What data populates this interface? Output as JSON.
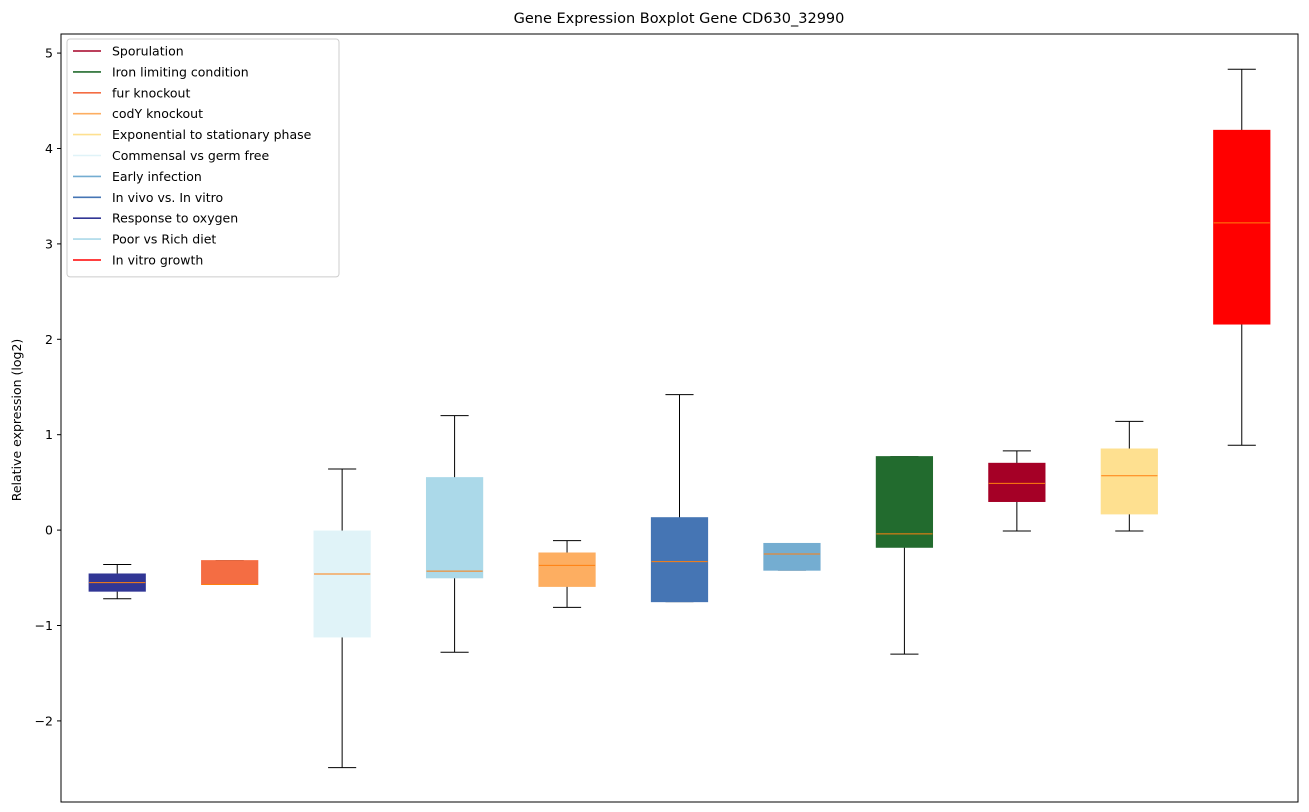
{
  "chart_data": {
    "type": "boxplot",
    "title": "Gene Expression Boxplot Gene CD630_32990",
    "xlabel": "",
    "ylabel": "Relative expression (log2)",
    "ylim": [
      -2.85,
      5.2
    ],
    "yticks": [
      -2,
      -1,
      0,
      1,
      2,
      3,
      4,
      5
    ],
    "ytick_labels": [
      "−2",
      "−1",
      "0",
      "1",
      "2",
      "3",
      "4",
      "5"
    ],
    "legend_position": "upper-left",
    "legend": [
      {
        "label": "Sporulation",
        "color": "#a50026"
      },
      {
        "label": "Iron limiting condition",
        "color": "#226b2e"
      },
      {
        "label": "fur knockout",
        "color": "#f46d43"
      },
      {
        "label": "codY knockout",
        "color": "#fdae61"
      },
      {
        "label": "Exponential to stationary phase",
        "color": "#fee090"
      },
      {
        "label": "Commensal vs germ free",
        "color": "#e0f3f8"
      },
      {
        "label": "Early infection",
        "color": "#74add1"
      },
      {
        "label": "In vivo vs. In vitro",
        "color": "#4575b4"
      },
      {
        "label": "Response to oxygen",
        "color": "#313695"
      },
      {
        "label": "Poor vs Rich diet",
        "color": "#abd9e9"
      },
      {
        "label": "In vitro growth",
        "color": "#ff0000"
      }
    ],
    "boxes": [
      {
        "group": "Response to oxygen",
        "color": "#313695",
        "whisker_low": -0.72,
        "q1": -0.64,
        "median": -0.55,
        "q3": -0.46,
        "whisker_high": -0.36
      },
      {
        "group": "fur knockout",
        "color": "#f46d43",
        "whisker_low": -0.57,
        "q1": -0.57,
        "median": -0.57,
        "q3": -0.32,
        "whisker_high": -0.32
      },
      {
        "group": "Commensal vs germ free",
        "color": "#e0f3f8",
        "whisker_low": -2.49,
        "q1": -1.12,
        "median": -0.46,
        "q3": -0.01,
        "whisker_high": 0.64
      },
      {
        "group": "Poor vs Rich diet",
        "color": "#abd9e9",
        "whisker_low": -1.28,
        "q1": -0.5,
        "median": -0.43,
        "q3": 0.55,
        "whisker_high": 1.2
      },
      {
        "group": "codY knockout",
        "color": "#fdae61",
        "whisker_low": -0.81,
        "q1": -0.59,
        "median": -0.37,
        "q3": -0.24,
        "whisker_high": -0.11
      },
      {
        "group": "In vivo vs. In vitro",
        "color": "#4575b4",
        "whisker_low": -0.75,
        "q1": -0.75,
        "median": -0.33,
        "q3": 0.13,
        "whisker_high": 1.42
      },
      {
        "group": "Early infection",
        "color": "#74add1",
        "whisker_low": -0.42,
        "q1": -0.42,
        "median": -0.25,
        "q3": -0.14,
        "whisker_high": -0.14
      },
      {
        "group": "Iron limiting condition",
        "color": "#226b2e",
        "whisker_low": -1.3,
        "q1": -0.18,
        "median": -0.04,
        "q3": 0.77,
        "whisker_high": 0.77
      },
      {
        "group": "Sporulation",
        "color": "#a50026",
        "whisker_low": -0.01,
        "q1": 0.3,
        "median": 0.49,
        "q3": 0.7,
        "whisker_high": 0.83
      },
      {
        "group": "Exponential to stationary phase",
        "color": "#fee090",
        "whisker_low": -0.01,
        "q1": 0.17,
        "median": 0.57,
        "q3": 0.85,
        "whisker_high": 1.14
      },
      {
        "group": "In vitro growth",
        "color": "#ff0000",
        "whisker_low": 0.89,
        "q1": 2.16,
        "median": 3.22,
        "q3": 4.19,
        "whisker_high": 4.83
      }
    ],
    "median_color": "#ff7f0e",
    "whisker_color": "#000000",
    "grid": false
  }
}
